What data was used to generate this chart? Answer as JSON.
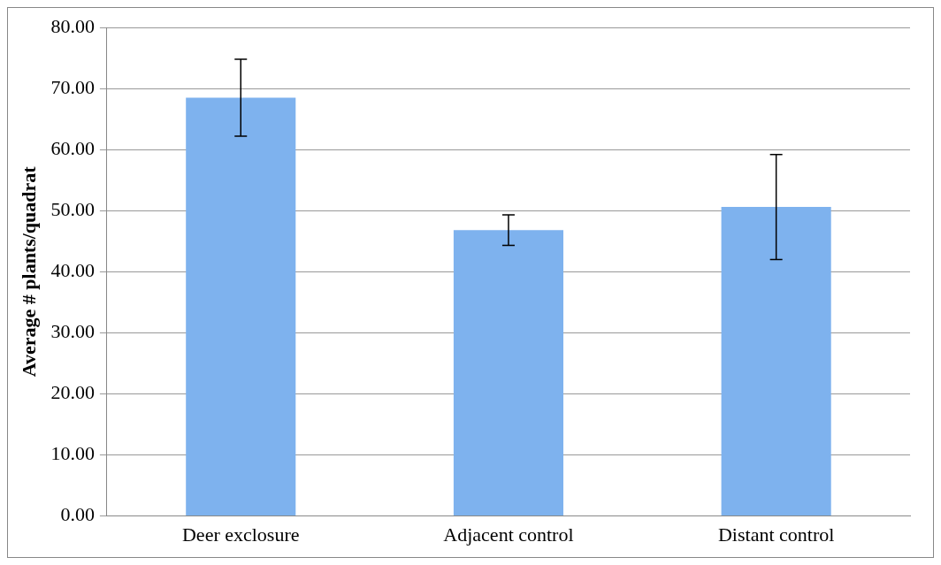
{
  "chart_data": {
    "type": "bar",
    "ylabel": "Average # plants/quadrat",
    "categories": [
      "Deer exclosure",
      "Adjacent control",
      "Distant control"
    ],
    "values": [
      68.5,
      46.8,
      50.6
    ],
    "errors": [
      6.3,
      2.5,
      8.6
    ],
    "color": "#7eb2ee",
    "ylim": [
      0,
      80
    ],
    "yticks": [
      {
        "value": 0,
        "label": "0.00"
      },
      {
        "value": 10,
        "label": "10.00"
      },
      {
        "value": 20,
        "label": "20.00"
      },
      {
        "value": 30,
        "label": "30.00"
      },
      {
        "value": 40,
        "label": "40.00"
      },
      {
        "value": 50,
        "label": "50.00"
      },
      {
        "value": 60,
        "label": "60.00"
      },
      {
        "value": 70,
        "label": "70.00"
      },
      {
        "value": 80,
        "label": "80.00"
      }
    ],
    "grid": "y",
    "legend": false
  }
}
